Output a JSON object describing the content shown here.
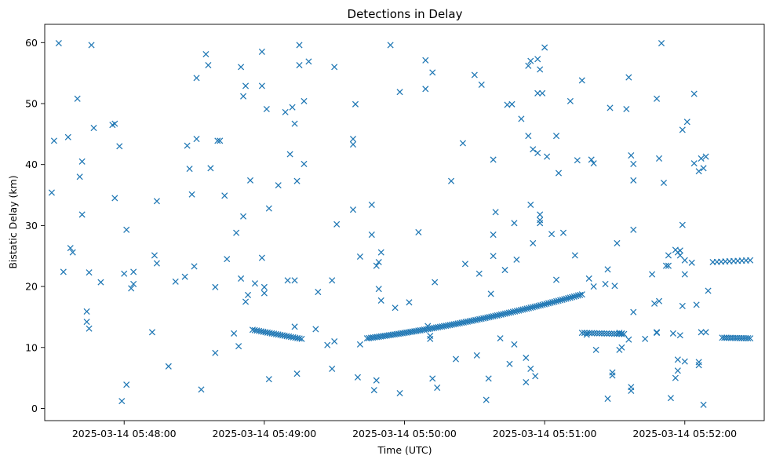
{
  "chart_data": {
    "type": "scatter",
    "title": "Detections in Delay",
    "xlabel": "Time (UTC)",
    "ylabel": "Bistatic Delay (km)",
    "marker": "x",
    "color": "#1f77b4",
    "grid": false,
    "legend": "none",
    "xlim_seconds": [
      -18,
      290
    ],
    "ylim": [
      -2,
      63
    ],
    "x_unit": "seconds after 2025-03-14 05:47:44 UTC",
    "xticks": [
      {
        "value": 16,
        "label": "2025-03-14 05:48:00"
      },
      {
        "value": 76,
        "label": "2025-03-14 05:49:00"
      },
      {
        "value": 136,
        "label": "2025-03-14 05:50:00"
      },
      {
        "value": 196,
        "label": "2025-03-14 05:51:00"
      },
      {
        "value": 256,
        "label": "2025-03-14 05:52:00"
      }
    ],
    "yticks": [
      0,
      10,
      20,
      30,
      40,
      50,
      60
    ],
    "tracks": [
      {
        "x_start": 71,
        "x_end": 92,
        "count": 24,
        "y_start": 12.9,
        "y_end": 11.4
      },
      {
        "x_start": 120,
        "x_end": 212,
        "count": 110,
        "y_start": 11.5,
        "y_end": 18.7
      },
      {
        "x_start": 212,
        "x_end": 230,
        "count": 18,
        "y_start": 12.4,
        "y_end": 12.2
      },
      {
        "x_start": 272,
        "x_end": 284,
        "count": 14,
        "y_start": 11.6,
        "y_end": 11.5
      },
      {
        "x_start": 268,
        "x_end": 284,
        "count": 10,
        "y_start": 24.0,
        "y_end": 24.3
      }
    ],
    "points": [
      [
        -15,
        35.4
      ],
      [
        -14,
        43.9
      ],
      [
        -12,
        59.9
      ],
      [
        -10,
        22.4
      ],
      [
        -8,
        44.5
      ],
      [
        -7,
        26.3
      ],
      [
        -6,
        25.6
      ],
      [
        -4,
        50.8
      ],
      [
        -3,
        38.0
      ],
      [
        -2,
        40.5
      ],
      [
        -2,
        31.8
      ],
      [
        0,
        15.9
      ],
      [
        0,
        14.2
      ],
      [
        1,
        13.1
      ],
      [
        1,
        22.3
      ],
      [
        2,
        59.6
      ],
      [
        3,
        46.0
      ],
      [
        6,
        20.7
      ],
      [
        11,
        46.5
      ],
      [
        12,
        34.5
      ],
      [
        12,
        46.7
      ],
      [
        14,
        43.0
      ],
      [
        15,
        1.2
      ],
      [
        16,
        22.1
      ],
      [
        17,
        29.3
      ],
      [
        17,
        3.9
      ],
      [
        19,
        19.7
      ],
      [
        20,
        22.4
      ],
      [
        20,
        20.4
      ],
      [
        28,
        12.5
      ],
      [
        29,
        25.1
      ],
      [
        30,
        23.8
      ],
      [
        30,
        34.0
      ],
      [
        35,
        6.9
      ],
      [
        38,
        20.8
      ],
      [
        42,
        21.6
      ],
      [
        43,
        43.1
      ],
      [
        44,
        39.3
      ],
      [
        45,
        35.1
      ],
      [
        46,
        23.3
      ],
      [
        47,
        44.2
      ],
      [
        47,
        54.2
      ],
      [
        49,
        3.1
      ],
      [
        51,
        58.1
      ],
      [
        52,
        56.3
      ],
      [
        53,
        39.4
      ],
      [
        55,
        9.1
      ],
      [
        55,
        19.9
      ],
      [
        56,
        43.9
      ],
      [
        57,
        43.9
      ],
      [
        59,
        34.9
      ],
      [
        60,
        24.5
      ],
      [
        63,
        12.3
      ],
      [
        64,
        28.8
      ],
      [
        65,
        10.2
      ],
      [
        66,
        21.3
      ],
      [
        66,
        56.0
      ],
      [
        67,
        51.2
      ],
      [
        67,
        31.5
      ],
      [
        68,
        52.9
      ],
      [
        68,
        17.5
      ],
      [
        69,
        18.6
      ],
      [
        70,
        37.4
      ],
      [
        72,
        20.5
      ],
      [
        75,
        58.5
      ],
      [
        75,
        52.9
      ],
      [
        75,
        24.7
      ],
      [
        76,
        19.9
      ],
      [
        76,
        18.9
      ],
      [
        77,
        49.1
      ],
      [
        78,
        32.8
      ],
      [
        78,
        4.8
      ],
      [
        82,
        36.6
      ],
      [
        85,
        48.6
      ],
      [
        86,
        21.0
      ],
      [
        87,
        41.7
      ],
      [
        88,
        49.4
      ],
      [
        89,
        21.0
      ],
      [
        89,
        46.7
      ],
      [
        89,
        13.4
      ],
      [
        90,
        37.3
      ],
      [
        90,
        5.7
      ],
      [
        91,
        59.6
      ],
      [
        91,
        56.3
      ],
      [
        93,
        40.1
      ],
      [
        93,
        50.4
      ],
      [
        95,
        56.9
      ],
      [
        98,
        13.0
      ],
      [
        99,
        19.1
      ],
      [
        103,
        10.4
      ],
      [
        105,
        21.0
      ],
      [
        105,
        6.5
      ],
      [
        106,
        56.0
      ],
      [
        106,
        11.0
      ],
      [
        107,
        30.2
      ],
      [
        114,
        32.6
      ],
      [
        114,
        43.3
      ],
      [
        114,
        44.2
      ],
      [
        115,
        49.9
      ],
      [
        116,
        5.1
      ],
      [
        117,
        24.9
      ],
      [
        117,
        10.5
      ],
      [
        122,
        28.5
      ],
      [
        122,
        33.4
      ],
      [
        123,
        3.0
      ],
      [
        124,
        23.4
      ],
      [
        124,
        4.6
      ],
      [
        125,
        24.0
      ],
      [
        125,
        19.6
      ],
      [
        126,
        25.6
      ],
      [
        126,
        17.7
      ],
      [
        130,
        59.6
      ],
      [
        132,
        16.5
      ],
      [
        134,
        2.5
      ],
      [
        134,
        51.9
      ],
      [
        138,
        17.4
      ],
      [
        142,
        28.9
      ],
      [
        145,
        52.4
      ],
      [
        145,
        57.1
      ],
      [
        146,
        13.5
      ],
      [
        147,
        11.4
      ],
      [
        147,
        11.9
      ],
      [
        148,
        55.1
      ],
      [
        148,
        4.9
      ],
      [
        149,
        20.7
      ],
      [
        150,
        3.4
      ],
      [
        156,
        37.3
      ],
      [
        158,
        8.1
      ],
      [
        161,
        43.5
      ],
      [
        162,
        23.7
      ],
      [
        166,
        54.7
      ],
      [
        167,
        8.7
      ],
      [
        168,
        22.1
      ],
      [
        169,
        53.1
      ],
      [
        171,
        1.4
      ],
      [
        172,
        4.9
      ],
      [
        173,
        18.8
      ],
      [
        174,
        40.8
      ],
      [
        174,
        25.0
      ],
      [
        174,
        28.5
      ],
      [
        175,
        32.2
      ],
      [
        177,
        11.5
      ],
      [
        179,
        22.7
      ],
      [
        180,
        49.8
      ],
      [
        181,
        7.3
      ],
      [
        182,
        49.9
      ],
      [
        183,
        10.5
      ],
      [
        183,
        30.4
      ],
      [
        184,
        24.4
      ],
      [
        186,
        47.5
      ],
      [
        188,
        8.3
      ],
      [
        188,
        4.3
      ],
      [
        189,
        56.2
      ],
      [
        189,
        44.7
      ],
      [
        190,
        57.0
      ],
      [
        190,
        6.5
      ],
      [
        190,
        33.4
      ],
      [
        191,
        27.1
      ],
      [
        191,
        42.5
      ],
      [
        192,
        5.3
      ],
      [
        193,
        57.3
      ],
      [
        193,
        51.7
      ],
      [
        193,
        41.9
      ],
      [
        194,
        31.8
      ],
      [
        194,
        30.9
      ],
      [
        194,
        30.4
      ],
      [
        194,
        55.6
      ],
      [
        195,
        51.7
      ],
      [
        196,
        59.2
      ],
      [
        197,
        41.3
      ],
      [
        199,
        28.6
      ],
      [
        201,
        21.1
      ],
      [
        201,
        44.7
      ],
      [
        202,
        38.6
      ],
      [
        204,
        28.8
      ],
      [
        207,
        50.4
      ],
      [
        209,
        25.1
      ],
      [
        210,
        40.7
      ],
      [
        212,
        53.8
      ],
      [
        214,
        12.1
      ],
      [
        215,
        21.3
      ],
      [
        216,
        40.8
      ],
      [
        217,
        40.2
      ],
      [
        217,
        20.0
      ],
      [
        218,
        9.6
      ],
      [
        222,
        20.4
      ],
      [
        223,
        22.8
      ],
      [
        223,
        1.6
      ],
      [
        224,
        49.3
      ],
      [
        225,
        5.9
      ],
      [
        225,
        5.4
      ],
      [
        226,
        20.1
      ],
      [
        227,
        27.1
      ],
      [
        228,
        12.4
      ],
      [
        228,
        9.6
      ],
      [
        229,
        12.3
      ],
      [
        229,
        10.0
      ],
      [
        231,
        49.1
      ],
      [
        232,
        11.3
      ],
      [
        232,
        54.3
      ],
      [
        233,
        2.9
      ],
      [
        233,
        3.5
      ],
      [
        233,
        41.5
      ],
      [
        234,
        37.4
      ],
      [
        234,
        40.1
      ],
      [
        234,
        29.3
      ],
      [
        234,
        15.8
      ],
      [
        239,
        11.4
      ],
      [
        242,
        22.0
      ],
      [
        243,
        17.2
      ],
      [
        244,
        12.5
      ],
      [
        244,
        50.8
      ],
      [
        244,
        12.4
      ],
      [
        245,
        17.6
      ],
      [
        245,
        41.0
      ],
      [
        246,
        59.9
      ],
      [
        247,
        37.0
      ],
      [
        248,
        23.4
      ],
      [
        249,
        25.1
      ],
      [
        249,
        23.4
      ],
      [
        250,
        1.7
      ],
      [
        251,
        12.3
      ],
      [
        252,
        26.0
      ],
      [
        252,
        5.0
      ],
      [
        253,
        25.6
      ],
      [
        253,
        6.2
      ],
      [
        253,
        8.0
      ],
      [
        254,
        25.9
      ],
      [
        254,
        12.0
      ],
      [
        254,
        25.1
      ],
      [
        255,
        30.1
      ],
      [
        255,
        16.8
      ],
      [
        255,
        45.7
      ],
      [
        256,
        22.0
      ],
      [
        256,
        24.3
      ],
      [
        256,
        7.7
      ],
      [
        257,
        47.0
      ],
      [
        259,
        23.9
      ],
      [
        260,
        51.6
      ],
      [
        260,
        40.2
      ],
      [
        261,
        17.0
      ],
      [
        262,
        7.6
      ],
      [
        262,
        7.1
      ],
      [
        262,
        38.9
      ],
      [
        263,
        12.5
      ],
      [
        263,
        41.0
      ],
      [
        264,
        39.4
      ],
      [
        264,
        0.6
      ],
      [
        265,
        12.5
      ],
      [
        265,
        41.3
      ],
      [
        266,
        19.3
      ]
    ]
  }
}
